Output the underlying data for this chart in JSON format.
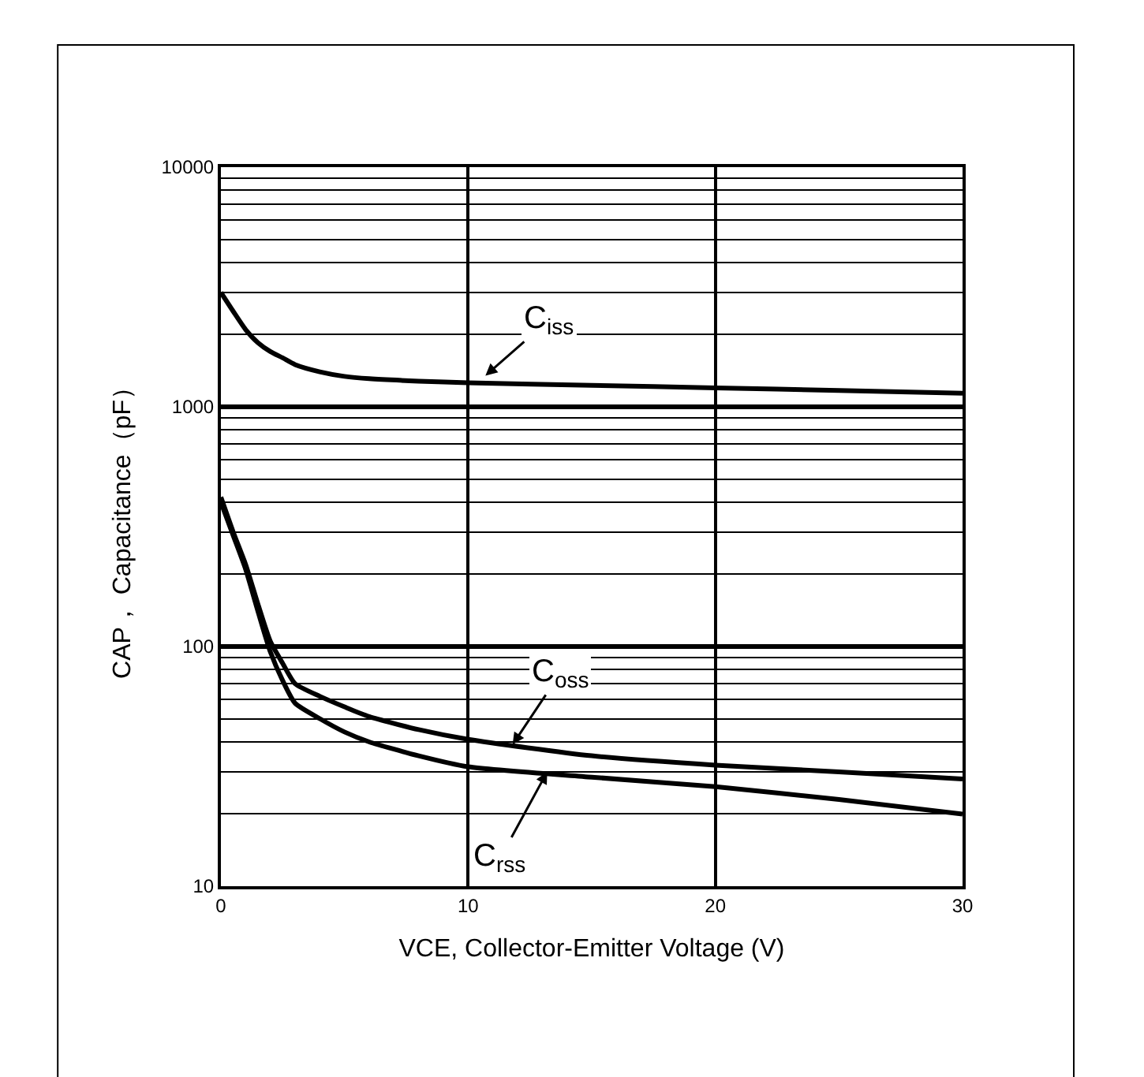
{
  "chart_data": {
    "type": "line",
    "xlabel": "VCE, Collector-Emitter Voltage (V)",
    "ylabel": "CAP， Capacitance（pF）",
    "log": "y",
    "grid": true,
    "marker": "none",
    "line_style": "solid",
    "xlim": [
      0,
      30
    ],
    "xticks": [
      0,
      10,
      20,
      30
    ],
    "ylim": [
      10,
      10000
    ],
    "yticks": [
      10,
      100,
      1000,
      10000
    ],
    "series": [
      {
        "color": "#000000",
        "x": [
          0,
          0.5,
          1,
          1.5,
          2,
          2.5,
          3,
          4,
          5,
          6,
          8,
          10,
          15,
          20,
          25,
          30
        ],
        "values": [
          3000,
          2500,
          2100,
          1850,
          1700,
          1600,
          1500,
          1400,
          1340,
          1310,
          1280,
          1260,
          1230,
          1200,
          1170,
          1140
        ]
      },
      {
        "color": "#000000",
        "x": [
          0,
          0.5,
          1,
          1.5,
          2,
          2.5,
          3,
          4,
          5,
          6,
          8,
          10,
          15,
          20,
          25,
          30
        ],
        "values": [
          420,
          300,
          220,
          150,
          105,
          85,
          70,
          62,
          56,
          51,
          45,
          41,
          35,
          32,
          30,
          28
        ]
      },
      {
        "color": "#000000",
        "x": [
          0,
          0.5,
          1,
          1.5,
          2,
          2.5,
          3,
          4,
          5,
          6,
          8,
          10,
          15,
          20,
          25,
          30
        ],
        "values": [
          400,
          290,
          210,
          140,
          95,
          72,
          58,
          50,
          44,
          40,
          35,
          31.5,
          28.5,
          26,
          23,
          20
        ]
      }
    ],
    "annotations": [
      {
        "text": "C$_{iss}$",
        "x": 10.7,
        "y": 1350
      },
      {
        "text": "C$_{oss}$",
        "x": 11.8,
        "y": 39
      },
      {
        "text": "C$_{rss}$",
        "x": 13.2,
        "y": 30
      }
    ]
  }
}
